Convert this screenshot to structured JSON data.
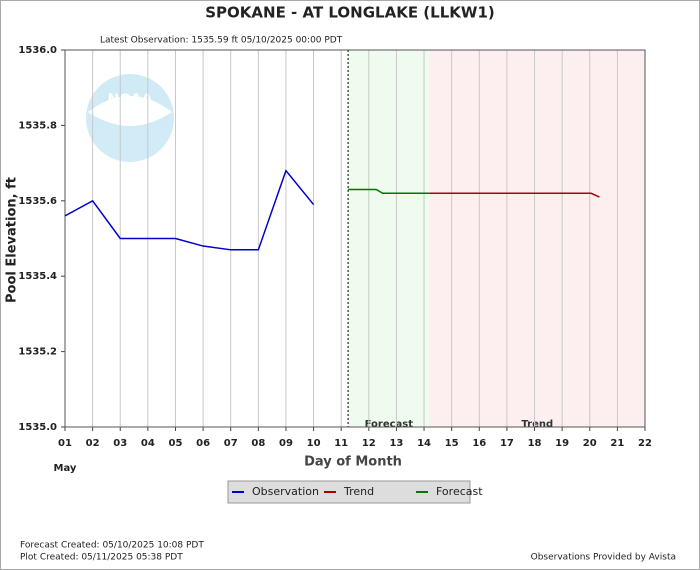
{
  "chart_data": {
    "type": "line",
    "title": "SPOKANE - AT LONGLAKE  (LLKW1)",
    "subtitle": "Latest Observation: 1535.59 ft 05/10/2025 00:00 PDT",
    "x_label": "Day of Month",
    "x_sublabel": "May",
    "y_label": "Pool Elevation, ft",
    "logo_text": "NOAA",
    "xlim": [
      1,
      22
    ],
    "ylim": [
      1535.0,
      1536.0
    ],
    "xticks": [
      {
        "value": 1,
        "label": "01"
      },
      {
        "value": 2,
        "label": "02"
      },
      {
        "value": 3,
        "label": "03"
      },
      {
        "value": 4,
        "label": "04"
      },
      {
        "value": 5,
        "label": "05"
      },
      {
        "value": 6,
        "label": "06"
      },
      {
        "value": 7,
        "label": "07"
      },
      {
        "value": 8,
        "label": "08"
      },
      {
        "value": 9,
        "label": "09"
      },
      10,
      11,
      12,
      13,
      14,
      15,
      16,
      17,
      18,
      19,
      20,
      21,
      22
    ],
    "yticks": [
      {
        "value": 1535,
        "label": "1535.0"
      },
      1535.2,
      1535.4,
      1535.6,
      1535.8,
      {
        "value": 1536,
        "label": "1536.0"
      }
    ],
    "grid": true,
    "regions": [
      {
        "label": "Forecast",
        "start": 11.25,
        "end": 14.2,
        "color": "#eefbee"
      },
      {
        "label": "Trend",
        "start": 14.2,
        "end": 22,
        "color": "#fdeff0"
      }
    ],
    "series": [
      {
        "name": "Observation",
        "color": "#0000cc",
        "x": [
          1,
          2,
          3,
          4,
          5,
          6,
          7,
          8,
          9,
          10
        ],
        "values": [
          1535.56,
          1535.6,
          1535.5,
          1535.5,
          1535.5,
          1535.48,
          1535.47,
          1535.47,
          1535.68,
          1535.59
        ]
      },
      {
        "name": "Trend",
        "color": "#aa0000",
        "x": [
          14.2,
          20.05,
          20.35
        ],
        "values": [
          1535.62,
          1535.62,
          1535.61
        ]
      },
      {
        "name": "Forecast",
        "color": "#007700",
        "x": [
          11.25,
          12.27,
          12.5,
          14.2
        ],
        "values": [
          1535.63,
          1535.63,
          1535.62,
          1535.62
        ]
      }
    ],
    "footer_left": [
      "Forecast Created: 05/10/2025 10:08 PDT",
      "Plot Created: 05/11/2025 05:38 PDT"
    ],
    "footer_right": "Observations Provided by Avista"
  }
}
